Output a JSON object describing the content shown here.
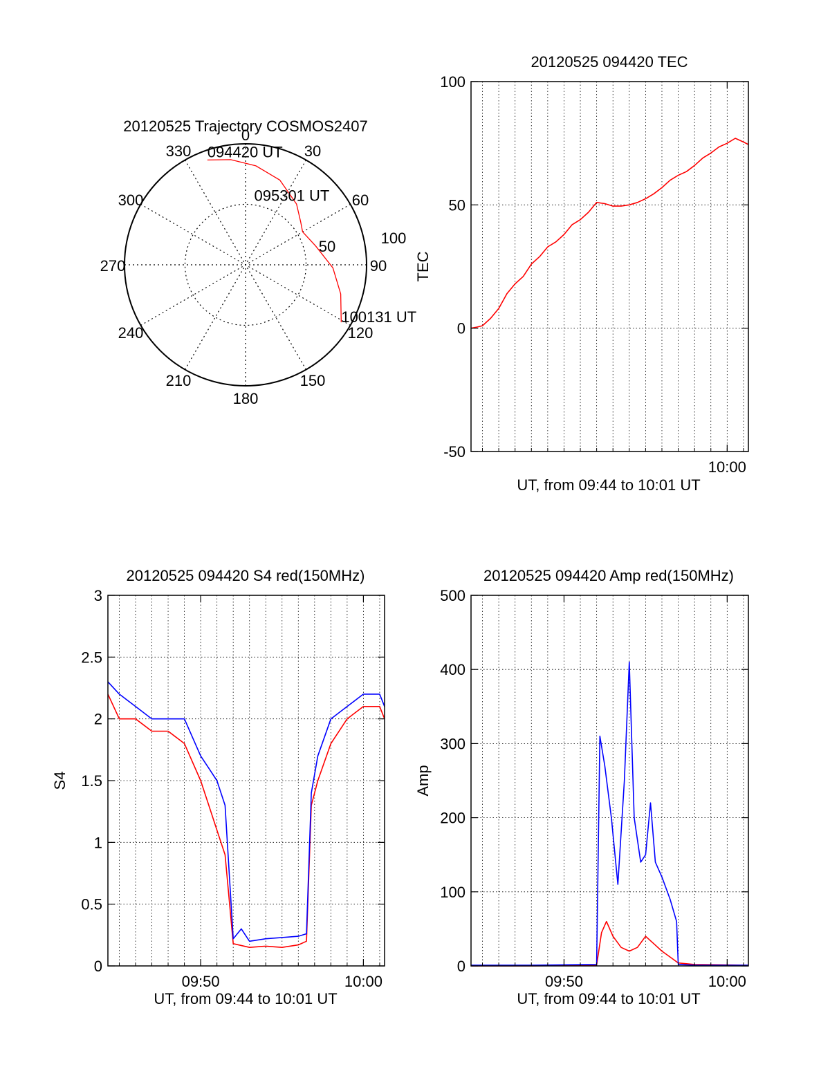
{
  "chart_data": [
    {
      "type": "polar",
      "title": "20120525 Trajectory COSMOS2407",
      "angle_labels": [
        "0",
        "30",
        "60",
        "90",
        "120",
        "150",
        "180",
        "210",
        "240",
        "270",
        "300",
        "330"
      ],
      "radial_labels": [
        "50",
        "100"
      ],
      "trajectory": [
        {
          "az": 340,
          "el": 7
        },
        {
          "az": 352,
          "el": 11
        },
        {
          "az": 6,
          "el": 16
        },
        {
          "az": 22,
          "el": 22
        },
        {
          "az": 40,
          "el": 31
        },
        {
          "az": 52,
          "el": 38
        },
        {
          "az": 60,
          "el": 41
        },
        {
          "az": 75,
          "el": 36
        },
        {
          "az": 92,
          "el": 25
        },
        {
          "az": 107,
          "el": 16
        },
        {
          "az": 121,
          "el": 7
        }
      ],
      "annotations": [
        {
          "text": "094420 UT",
          "az": 340,
          "el": 7
        },
        {
          "text": "095301 UT",
          "az": 60,
          "el": 41
        },
        {
          "text": "100131 UT",
          "az": 121,
          "el": 7
        }
      ],
      "line_color": "#ff0000"
    },
    {
      "type": "line",
      "title": "20120525 094420 TEC",
      "xlabel": "UT, from 09:44 to 10:01 UT",
      "ylabel": "TEC",
      "xlim": [
        44.3,
        61.3
      ],
      "ylim": [
        -50,
        100
      ],
      "yticks": [
        "100",
        "50",
        "0",
        "-50"
      ],
      "xticks": [
        {
          "value": 60,
          "label": "10:00"
        }
      ],
      "grid": true,
      "series": [
        {
          "color": "#ff0000",
          "x": [
            44.3,
            44.7,
            45.0,
            45.5,
            46.0,
            46.5,
            47.0,
            47.5,
            48.0,
            48.5,
            49.0,
            49.5,
            50.0,
            50.5,
            51.0,
            51.5,
            52.0,
            52.5,
            53.0,
            53.5,
            54.0,
            54.5,
            55.0,
            55.5,
            56.0,
            56.5,
            57.0,
            57.5,
            58.0,
            58.5,
            59.0,
            59.5,
            60.0,
            60.5,
            61.0,
            61.3
          ],
          "y": [
            0,
            0.5,
            1,
            4,
            8,
            14,
            18,
            21,
            26,
            29,
            33,
            35,
            38,
            42,
            44,
            47,
            51,
            50.5,
            49.5,
            49.5,
            50,
            51,
            52.5,
            54.5,
            57,
            60,
            62,
            63.5,
            66,
            69,
            71,
            73.5,
            75,
            77,
            75.5,
            74.5
          ]
        }
      ]
    },
    {
      "type": "line",
      "title": "20120525 094420 S4 red(150MHz)",
      "xlabel": "UT, from 09:44 to 10:01 UT",
      "ylabel": "S4",
      "xlim": [
        44.3,
        61.3
      ],
      "ylim": [
        0,
        3
      ],
      "yticks": [
        "3",
        "2.5",
        "2",
        "1.5",
        "1",
        "0.5",
        "0"
      ],
      "xticks": [
        {
          "value": 50,
          "label": "09:50"
        },
        {
          "value": 60,
          "label": "10:00"
        }
      ],
      "grid": true,
      "series": [
        {
          "color": "#ff0000",
          "x": [
            44.3,
            45.0,
            46.0,
            47.0,
            48.0,
            49.0,
            50.0,
            50.5,
            51.0,
            51.5,
            52.0,
            53.0,
            54.0,
            55.0,
            56.0,
            56.5,
            56.8,
            57.2,
            58.0,
            59.0,
            60.0,
            61.0,
            61.3
          ],
          "y": [
            2.2,
            2.0,
            2.0,
            1.9,
            1.9,
            1.8,
            1.5,
            1.3,
            1.1,
            0.9,
            0.18,
            0.15,
            0.16,
            0.15,
            0.17,
            0.2,
            1.3,
            1.5,
            1.8,
            2.0,
            2.1,
            2.1,
            2.0
          ]
        },
        {
          "color": "#0000ff",
          "x": [
            44.3,
            45.0,
            46.0,
            47.0,
            48.0,
            49.0,
            50.0,
            50.5,
            51.0,
            51.5,
            52.0,
            52.5,
            53.0,
            54.0,
            55.0,
            56.0,
            56.5,
            56.8,
            57.2,
            58.0,
            59.0,
            60.0,
            61.0,
            61.3
          ],
          "y": [
            2.3,
            2.2,
            2.1,
            2.0,
            2.0,
            2.0,
            1.7,
            1.6,
            1.5,
            1.3,
            0.22,
            0.3,
            0.2,
            0.22,
            0.23,
            0.24,
            0.26,
            1.4,
            1.7,
            2.0,
            2.1,
            2.2,
            2.2,
            2.1
          ]
        }
      ]
    },
    {
      "type": "line",
      "title": "20120525 094420 Amp red(150MHz)",
      "xlabel": "UT, from 09:44 to 10:01 UT",
      "ylabel": "Amp",
      "xlim": [
        44.3,
        61.3
      ],
      "ylim": [
        0,
        500
      ],
      "yticks": [
        "500",
        "400",
        "300",
        "200",
        "100",
        "0"
      ],
      "xticks": [
        {
          "value": 50,
          "label": "09:50"
        },
        {
          "value": 60,
          "label": "10:00"
        }
      ],
      "grid": true,
      "series": [
        {
          "color": "#ff0000",
          "x": [
            44.3,
            48.0,
            52.0,
            52.3,
            52.6,
            53.0,
            53.5,
            54.0,
            54.5,
            55.0,
            55.5,
            56.0,
            56.5,
            57.0,
            58.0,
            61.3
          ],
          "y": [
            0,
            0,
            1,
            45,
            60,
            40,
            25,
            20,
            25,
            40,
            30,
            20,
            12,
            4,
            2,
            1
          ]
        },
        {
          "color": "#0000ff",
          "x": [
            44.3,
            48.0,
            52.0,
            52.2,
            52.5,
            52.9,
            53.3,
            53.7,
            54.0,
            54.3,
            54.7,
            55.0,
            55.3,
            55.6,
            56.0,
            56.5,
            56.9,
            57.0,
            58.0,
            61.3
          ],
          "y": [
            1,
            1,
            2,
            310,
            270,
            200,
            110,
            250,
            410,
            200,
            140,
            150,
            220,
            140,
            120,
            90,
            60,
            2,
            1,
            1
          ]
        }
      ]
    }
  ]
}
